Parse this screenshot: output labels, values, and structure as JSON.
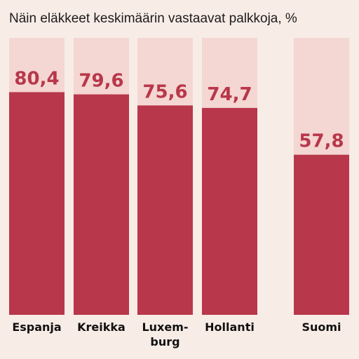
{
  "chart_data": {
    "type": "bar",
    "title": "Näin eläkkeet keskimäärin vastaavat palkkoja, %",
    "categories": [
      "Espanja",
      "Kreikka",
      "Luxem-\nburg",
      "Hollanti",
      "Suomi"
    ],
    "values": [
      80.4,
      79.6,
      75.6,
      74.7,
      57.8
    ],
    "value_labels": [
      "80,4",
      "79,6",
      "75,6",
      "74,7",
      "57,8"
    ],
    "ylim": [
      0,
      100
    ],
    "xlabel": "",
    "ylabel": "",
    "grid": false,
    "legend": "none",
    "colors": {
      "page_background": "#f8ece6",
      "bar_track": "#f4d6d2",
      "bar_fill": "#b8374a",
      "value_label": "#b8374a",
      "text": "#111111"
    }
  }
}
